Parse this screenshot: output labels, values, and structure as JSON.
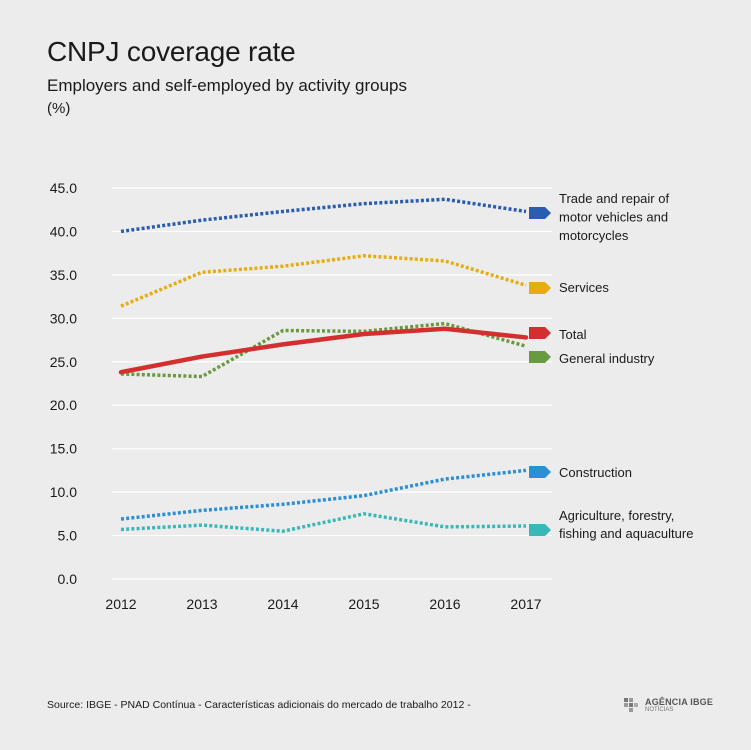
{
  "header": {
    "title": "CNPJ coverage rate",
    "subtitle": "Employers and self-employed by activity groups",
    "unit": "(%)"
  },
  "footer": {
    "source": "Source: IBGE - PNAD Contínua - Características adicionais do mercado de trabalho 2012 -",
    "logo_text": "AGÊNCIA IBGE",
    "logo_sub": "NOTÍCIAS"
  },
  "chart_data": {
    "type": "line",
    "title": "CNPJ coverage rate",
    "subtitle": "Employers and self-employed by activity groups",
    "ylabel": "(%)",
    "x": [
      "2012",
      "2013",
      "2014",
      "2015",
      "2016",
      "2017"
    ],
    "ylim": [
      0,
      45
    ],
    "yticks": [
      "0.0",
      "5.0",
      "10.0",
      "15.0",
      "20.0",
      "25.0",
      "30.0",
      "35.0",
      "40.0",
      "45.0"
    ],
    "grid": true,
    "legend_placement": "right, at line ends",
    "series": [
      {
        "name": "Trade and repair of motor vehicles and motorcycles",
        "label_lines": [
          "Trade and repair of",
          "motor vehicles and",
          "motorcycles"
        ],
        "color": "#2a5db0",
        "style": "dotted",
        "values": [
          40.0,
          41.3,
          42.3,
          43.2,
          43.7,
          42.3
        ]
      },
      {
        "name": "Services",
        "label_lines": [
          "Services"
        ],
        "color": "#e6ad12",
        "style": "dotted",
        "values": [
          31.4,
          35.3,
          36.0,
          37.2,
          36.6,
          33.8
        ]
      },
      {
        "name": "Total",
        "label_lines": [
          "Total"
        ],
        "color": "#d32f2f",
        "style": "solid",
        "values": [
          23.8,
          25.6,
          27.0,
          28.2,
          28.8,
          27.8
        ]
      },
      {
        "name": "General industry",
        "label_lines": [
          "General industry"
        ],
        "color": "#6a9a3f",
        "style": "dotted",
        "values": [
          23.6,
          23.3,
          28.6,
          28.5,
          29.4,
          26.8
        ]
      },
      {
        "name": "Construction",
        "label_lines": [
          "Construction"
        ],
        "color": "#2b8fd6",
        "style": "dotted",
        "values": [
          6.9,
          7.9,
          8.6,
          9.6,
          11.5,
          12.5
        ]
      },
      {
        "name": "Agriculture, forestry, fishing and aquaculture",
        "label_lines": [
          "Agriculture, forestry,",
          "fishing and aquaculture"
        ],
        "color": "#39b8b8",
        "style": "dotted",
        "values": [
          5.7,
          6.2,
          5.5,
          7.5,
          6.0,
          6.1
        ]
      }
    ]
  }
}
